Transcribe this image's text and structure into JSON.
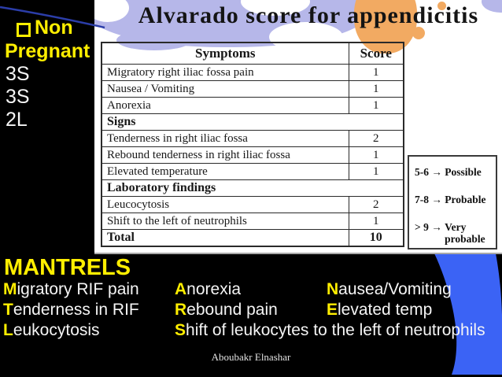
{
  "left_panel": {
    "bullet_glyph": "□",
    "title_line1": "Non",
    "title_line2": "Pregnant",
    "notes": [
      "3S",
      "3S",
      "2L"
    ]
  },
  "figure": {
    "title": "Alvarado score for appendicitis",
    "table": {
      "headers": [
        "Symptoms",
        "Score"
      ],
      "rows": [
        {
          "type": "item",
          "label": "Migratory right iliac fossa pain",
          "score": "1"
        },
        {
          "type": "item",
          "label": "Nausea / Vomiting",
          "score": "1"
        },
        {
          "type": "item",
          "label": "Anorexia",
          "score": "1"
        },
        {
          "type": "section",
          "label": "Signs",
          "score": ""
        },
        {
          "type": "item",
          "label": "Tenderness in right iliac fossa",
          "score": "2"
        },
        {
          "type": "item",
          "label": "Rebound tenderness in right iliac fossa",
          "score": "1"
        },
        {
          "type": "item",
          "label": "Elevated temperature",
          "score": "1"
        },
        {
          "type": "section",
          "label": "Laboratory findings",
          "score": ""
        },
        {
          "type": "item",
          "label": "Leucocytosis",
          "score": "2"
        },
        {
          "type": "item",
          "label": "Shift to the left of neutrophils",
          "score": "1"
        },
        {
          "type": "total",
          "label": "Total",
          "score": "10"
        }
      ]
    },
    "legend": [
      {
        "range": "5-6",
        "arrow": "→",
        "meaning": "Possible"
      },
      {
        "range": "7-8",
        "arrow": "→",
        "meaning": "Probable"
      },
      {
        "range": "> 9",
        "arrow": "→",
        "meaning": "Very probable"
      }
    ]
  },
  "mnemonic": {
    "title": "MANTRELS",
    "rows": [
      [
        {
          "first": "M",
          "rest": "igratory RIF pain",
          "col": 0
        },
        {
          "first": "A",
          "rest": "norexia",
          "col": 1
        },
        {
          "first": "N",
          "rest": "ausea/Vomiting",
          "col": 2
        }
      ],
      [
        {
          "first": "T",
          "rest": "enderness in RIF",
          "col": 0
        },
        {
          "first": "R",
          "rest": "ebound pain",
          "col": 1
        },
        {
          "first": "E",
          "rest": "levated temp",
          "col": 2
        }
      ],
      [
        {
          "first": "L",
          "rest": "eukocytosis",
          "col": 0
        },
        {
          "first": "S",
          "rest": "hift of leukocytes to the left of neutrophils",
          "col": 1
        }
      ]
    ]
  },
  "footer": {
    "credit": "Aboubakr Elnashar"
  },
  "colors": {
    "accent_yellow": "#ffee00",
    "accent_blue": "#3b63f5",
    "swoosh_blue": "#2b3da8",
    "blob_lavender": "#b6b7e9",
    "blob_orange": "#f2aa62",
    "slide_background": "#000000"
  }
}
